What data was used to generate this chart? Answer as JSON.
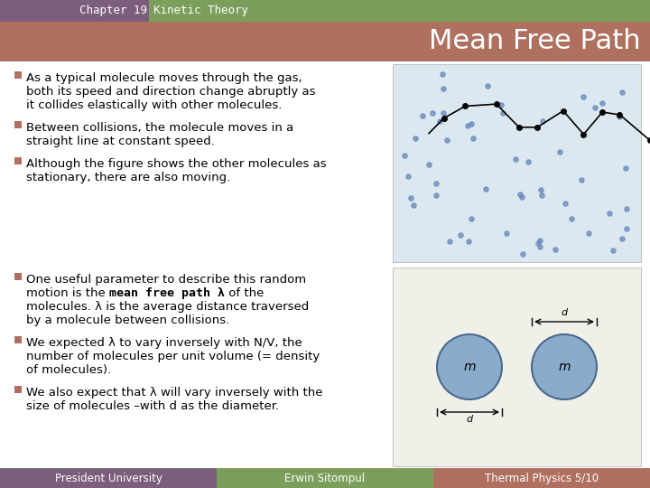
{
  "title_bar_color": "#7B5E7B",
  "title_bar_text": "Chapter 19",
  "subtitle_bar_color": "#7B9E5A",
  "subtitle_bar_text": "Kinetic Theory",
  "heading_color": "#B07060",
  "heading_text": "Mean Free Path",
  "bg_color": "#FFFFFF",
  "bullet_color": "#B07060",
  "footer_col1_color": "#7B5E7B",
  "footer_col2_color": "#7B9E5A",
  "footer_col3_color": "#B07060",
  "footer_text1": "President University",
  "footer_text2": "Erwin Sitompul",
  "footer_text3": "Thermal Physics 5/10",
  "bullets_top": [
    [
      "As a typical molecule moves through the gas,",
      "both its speed and direction change abruptly as",
      "it collides elastically with other molecules."
    ],
    [
      "Between collisions, the molecule moves in a",
      "straight line at constant speed."
    ],
    [
      "Although the figure shows the other molecules as",
      "stationary, there are also moving."
    ]
  ],
  "bullets_bottom": [
    [
      "One useful parameter to describe this random",
      "motion is the |mean free path λ| of the",
      "molecules. λ is the average distance traversed",
      "by a molecule between collisions."
    ],
    [
      "We expected λ to vary inversely with N/V, the",
      "number of molecules per unit volume (= density",
      "of molecules)."
    ],
    [
      "We also expect that λ will vary inversely with the",
      "size of molecules –with d as the diameter."
    ]
  ]
}
